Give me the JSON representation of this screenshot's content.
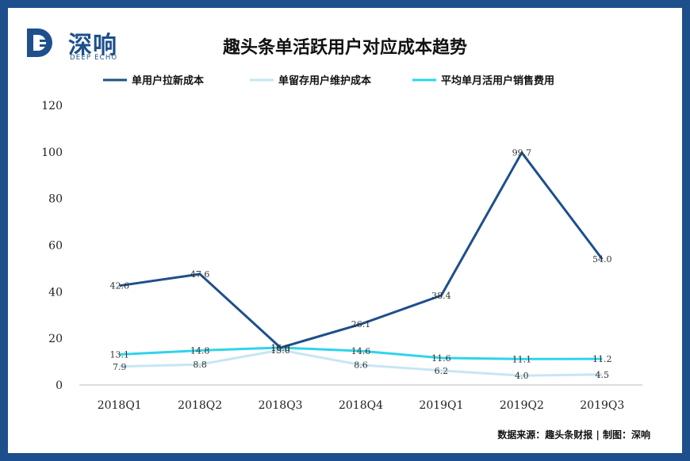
{
  "brand": {
    "name": "深响",
    "sub": "DEEP ECHO",
    "color": "#1d4f8c"
  },
  "source_note": "数据来源：趣头条财报 | 制图：深响",
  "chart_data": {
    "type": "line",
    "title": "趣头条单活跃用户对应成本趋势",
    "categories": [
      "2018Q1",
      "2018Q2",
      "2018Q3",
      "2018Q4",
      "2019Q1",
      "2019Q2",
      "2019Q3"
    ],
    "ylim": [
      0,
      120
    ],
    "yticks": [
      0,
      20,
      40,
      60,
      80,
      100,
      120
    ],
    "grid": false,
    "legend_position": "top-center",
    "series": [
      {
        "name": "单用户拉新成本",
        "color": "#1d4f8c",
        "values": [
          42.6,
          47.6,
          16.0,
          26.1,
          38.4,
          99.7,
          54.0
        ],
        "labels": [
          "42.6",
          "47.6",
          "16.0",
          "26.1",
          "38.4",
          "99.7",
          "54.0"
        ]
      },
      {
        "name": "单留存用户维护成本",
        "color": "#c6e6f4",
        "values": [
          7.9,
          8.8,
          15.0,
          8.6,
          6.2,
          4.0,
          4.5
        ],
        "labels": [
          "7.9",
          "8.8",
          "15.0",
          "8.6",
          "6.2",
          "4.0",
          "4.5"
        ]
      },
      {
        "name": "平均单月活用户销售费用",
        "color": "#2fd4ea",
        "values": [
          13.1,
          14.8,
          16.0,
          14.6,
          11.6,
          11.1,
          11.2
        ],
        "labels": [
          "13.1",
          "14.8",
          "16.0",
          "14.6",
          "11.6",
          "11.1",
          "11.2"
        ]
      }
    ]
  }
}
